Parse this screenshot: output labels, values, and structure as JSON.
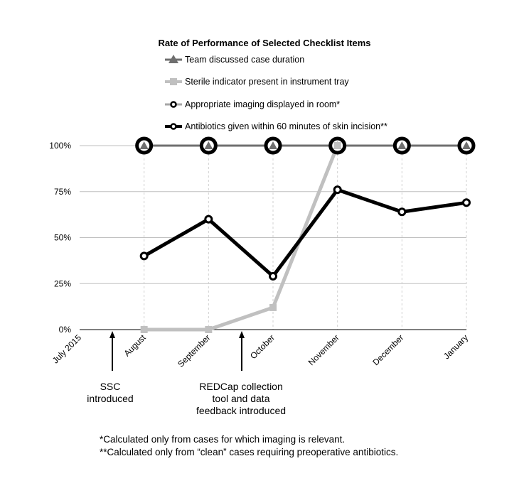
{
  "chart_data": {
    "type": "line",
    "title": "Rate of Performance of Selected Checklist Items",
    "categories": [
      "July 2015",
      "August",
      "September",
      "October",
      "November",
      "December",
      "January"
    ],
    "ylim": [
      0,
      100
    ],
    "yticks": [
      "0%",
      "25%",
      "50%",
      "75%",
      "100%"
    ],
    "ytick_values": [
      0,
      25,
      50,
      75,
      100
    ],
    "grid": true,
    "legend_position": "top",
    "series": [
      {
        "name": "Team discussed case duration",
        "marker": "triangle",
        "color": "#6f6f6f",
        "values": [
          null,
          100,
          100,
          100,
          100,
          100,
          100
        ]
      },
      {
        "name": "Sterile indicator present in instrument tray",
        "marker": "square",
        "color": "#c0c0c0",
        "values": [
          null,
          0,
          0,
          12,
          100,
          null,
          null
        ]
      },
      {
        "name": "Appropriate imaging displayed in room*",
        "marker": "circle-large",
        "color": "#a6a6a6",
        "values": [
          null,
          100,
          100,
          100,
          100,
          100,
          100
        ]
      },
      {
        "name": "Antibiotics given within 60 minutes of skin incision**",
        "marker": "circle",
        "color": "#000000",
        "values": [
          null,
          40,
          60,
          29,
          76,
          64,
          69
        ]
      }
    ],
    "annotations": [
      {
        "at": "SSC introduced",
        "lines": [
          "SSC",
          "introduced"
        ],
        "between": [
          "July 2015",
          "August"
        ]
      },
      {
        "at": "REDCap",
        "lines": [
          "REDCap collection",
          "tool and data",
          "feedback introduced"
        ],
        "between": [
          "September",
          "October"
        ]
      }
    ],
    "footnotes": [
      "*Calculated only from cases for which imaging is relevant.",
      "**Calculated only from “clean” cases requiring preoperative antibiotics."
    ]
  }
}
